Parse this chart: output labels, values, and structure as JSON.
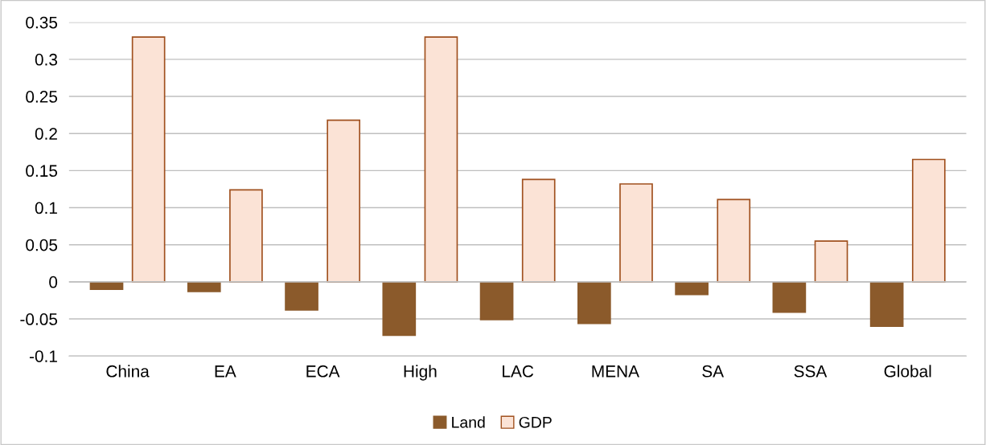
{
  "chart_data": {
    "type": "bar",
    "categories": [
      "China",
      "EA",
      "ECA",
      "High",
      "LAC",
      "MENA",
      "SA",
      "SSA",
      "Global"
    ],
    "series": [
      {
        "name": "Land",
        "color": "#8b5a2b",
        "values": [
          -0.01,
          -0.013,
          -0.038,
          -0.072,
          -0.051,
          -0.056,
          -0.017,
          -0.041,
          -0.06
        ]
      },
      {
        "name": "GDP",
        "color": "#fbe3d6",
        "values": [
          0.33,
          0.124,
          0.218,
          0.33,
          0.138,
          0.132,
          0.111,
          0.055,
          0.165
        ]
      }
    ],
    "ylim": [
      -0.1,
      0.35
    ],
    "yticks": [
      {
        "value": -0.1,
        "label": "-0.1"
      },
      {
        "value": -0.05,
        "label": "-0.05"
      },
      0,
      0.05,
      0.1,
      0.15,
      0.2,
      0.25,
      0.3,
      0.35
    ],
    "grid": "y",
    "legend": "bottom"
  }
}
